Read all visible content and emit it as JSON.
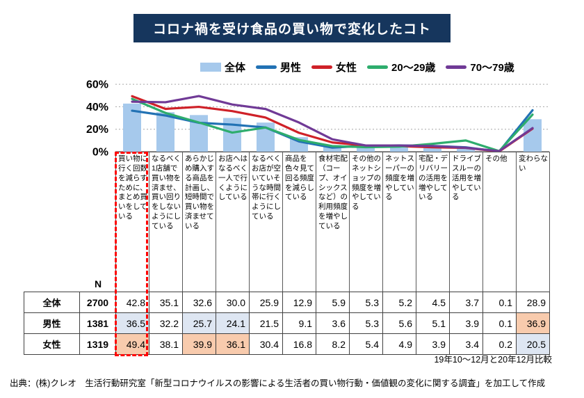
{
  "title": "コロナ禍を受け食品の買い物で変化したコト",
  "note": "19年10～12月と20年12月比較",
  "source": "出典：(株)クレオ　生活行動研究室「新型コロナウイルスの影響による生活者の買い物行動・価値観の変化に関する調査」を加工して作成",
  "colors": {
    "title_bg": "#16365D",
    "bar": "#A6C9EC",
    "male": "#2272B4",
    "female": "#CF2128",
    "young": "#2EAD6D",
    "old": "#703A96",
    "grid": "#A6A6A6",
    "axis": "#808080",
    "highlight_blue": "#DEE6F2",
    "highlight_orange": "#F8CBAD",
    "frame_red": "#FF0000"
  },
  "legend": [
    {
      "key": "zentai",
      "label": "全体",
      "type": "bar",
      "color_key": "bar"
    },
    {
      "key": "male",
      "label": "男性",
      "type": "line",
      "color_key": "male"
    },
    {
      "key": "female",
      "label": "女性",
      "type": "line",
      "color_key": "female"
    },
    {
      "key": "age20-29",
      "label": "20～29歳",
      "type": "line",
      "color_key": "young"
    },
    {
      "key": "age70-79",
      "label": "70～79歳",
      "type": "line",
      "color_key": "old"
    }
  ],
  "chart_data": {
    "type": "bar+line",
    "title": "コロナ禍を受け食品の買い物で変化したコト",
    "ylim": [
      0,
      60
    ],
    "yticks": [
      {
        "value": 0,
        "label": "0%"
      },
      {
        "value": 20,
        "label": "20%"
      },
      {
        "value": 40,
        "label": "40%"
      },
      {
        "value": 60,
        "label": "60%"
      }
    ],
    "grid": "dotted horizontal",
    "legend_position": "top",
    "categories": [
      "買い物に行く回数を減らすために、まとめ買いをしている",
      "なるべく1店舗で買い物を済ませ、買い回りをしないようにしている",
      "あらかじめ購入する商品を計画し、短時間で買い物を済ませている",
      "お店へはなるべく一人で行くようにしている",
      "なるべくお店が空いていそうな時間帯に行くようにしている",
      "商品を色々見て回る頻度を減らしている",
      "食材宅配（コープ、オイシックスなど）の利用頻度を増やしている",
      "その他のネットショップの頻度を増やしている",
      "ネットスーパーの頻度を増やしている",
      "宅配・デリバリーの活用を増やしている",
      "ドライブスルーの活用を増やしている",
      "その他",
      "変わらない"
    ],
    "bar_series": {
      "name": "全体",
      "color_key": "bar",
      "values": [
        42.8,
        35.1,
        32.6,
        30.0,
        25.9,
        12.9,
        5.9,
        5.3,
        5.2,
        4.5,
        3.7,
        0.1,
        28.9
      ]
    },
    "line_series": [
      {
        "name": "男性",
        "color_key": "male",
        "values": [
          36.5,
          32.2,
          25.7,
          24.1,
          21.5,
          9.1,
          3.6,
          5.3,
          5.6,
          5.1,
          3.9,
          0.1,
          36.9
        ]
      },
      {
        "name": "女性",
        "color_key": "female",
        "values": [
          49.4,
          38.1,
          39.9,
          36.1,
          30.4,
          16.8,
          8.2,
          5.4,
          4.9,
          3.9,
          3.4,
          0.2,
          20.5
        ]
      },
      {
        "name": "20～29歳",
        "color_key": "young",
        "values": [
          47.0,
          34.5,
          26.0,
          17.0,
          21.5,
          10.5,
          5.0,
          4.0,
          4.5,
          7.0,
          10.0,
          0.5,
          33.0
        ]
      },
      {
        "name": "70～79歳",
        "color_key": "old",
        "values": [
          44.5,
          44.0,
          49.5,
          42.0,
          38.0,
          26.0,
          11.0,
          5.5,
          5.5,
          5.0,
          3.5,
          0.5,
          21.0
        ]
      }
    ]
  },
  "table": {
    "n_header": "N",
    "rows": [
      {
        "label": "全体",
        "n": "2700",
        "values": [
          "42.8",
          "35.1",
          "32.6",
          "30.0",
          "25.9",
          "12.9",
          "5.9",
          "5.3",
          "5.2",
          "4.5",
          "3.7",
          "0.1",
          "28.9"
        ],
        "highlights": {}
      },
      {
        "label": "男性",
        "n": "1381",
        "values": [
          "36.5",
          "32.2",
          "25.7",
          "24.1",
          "21.5",
          "9.1",
          "3.6",
          "5.3",
          "5.6",
          "5.1",
          "3.9",
          "0.1",
          "36.9"
        ],
        "highlights": {
          "0": "blue",
          "2": "blue",
          "3": "blue",
          "12": "orange"
        }
      },
      {
        "label": "女性",
        "n": "1319",
        "values": [
          "49.4",
          "38.1",
          "39.9",
          "36.1",
          "30.4",
          "16.8",
          "8.2",
          "5.4",
          "4.9",
          "3.9",
          "3.4",
          "0.2",
          "20.5"
        ],
        "highlights": {
          "0": "orange",
          "2": "orange",
          "3": "orange",
          "12": "blue"
        }
      }
    ]
  }
}
